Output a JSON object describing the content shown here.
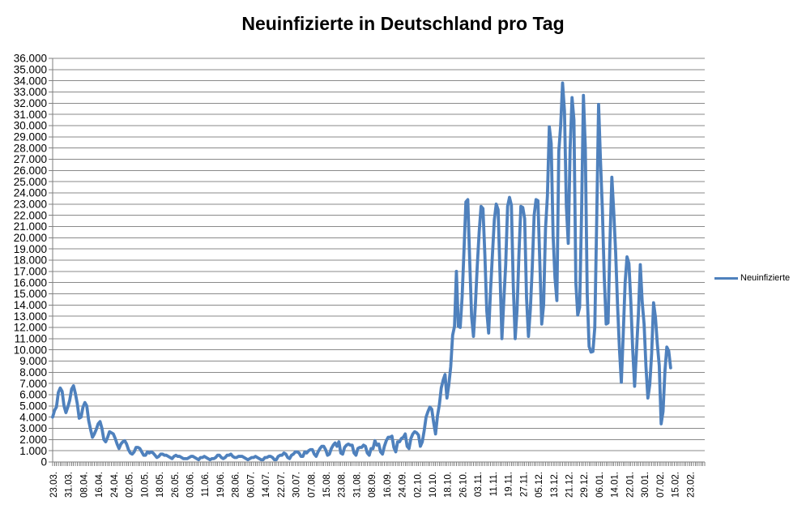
{
  "chart_data": {
    "type": "line",
    "title": "Neuinfizierte in Deutschland pro Tag",
    "grid": true,
    "legend": {
      "position": "right",
      "entries": [
        "Neuinfizierte"
      ]
    },
    "y_axis": {
      "min": 0,
      "max": 36000,
      "step": 1000,
      "tick_labels": [
        "36.000",
        "35.000",
        "34.000",
        "33.000",
        "32.000",
        "31.000",
        "30.000",
        "29.000",
        "28.000",
        "27.000",
        "26.000",
        "25.000",
        "24.000",
        "23.000",
        "22.000",
        "21.000",
        "20.000",
        "19.000",
        "18.000",
        "17.000",
        "16.000",
        "15.000",
        "14.000",
        "13.000",
        "12.000",
        "11.000",
        "10.000",
        "9.000",
        "8.000",
        "7.000",
        "6.000",
        "5.000",
        "4.000",
        "3.000",
        "2.000",
        "1.000",
        "0"
      ]
    },
    "x_axis": {
      "tick_labels": [
        "23.03.",
        "31.03.",
        "08.04.",
        "16.04.",
        "24.04.",
        "02.05.",
        "10.05.",
        "18.05.",
        "26.05.",
        "03.06.",
        "11.06.",
        "19.06.",
        "28.06.",
        "06.07.",
        "14.07.",
        "22.07.",
        "30.07.",
        "07.08.",
        "15.08.",
        "23.08.",
        "31.08.",
        "08.09.",
        "16.09.",
        "24.09.",
        "02.10.",
        "10.10.",
        "18.10.",
        "26.10.",
        "03.11.",
        "11.11.",
        "19.11.",
        "27.11.",
        "05.12.",
        "13.12.",
        "21.12.",
        "29.12.",
        "06.01.",
        "14.01.",
        "22.01.",
        "30.01.",
        "07.02.",
        "15.02.",
        "23.02."
      ],
      "label_interval": 8,
      "total_slots": 345,
      "labels_rotated": true
    },
    "series": [
      {
        "name": "Neuinfizierte",
        "color": "#4F81BD",
        "values": [
          4000,
          4600,
          4900,
          6200,
          6600,
          6300,
          5000,
          4400,
          4900,
          5500,
          6500,
          6800,
          6100,
          5200,
          3900,
          4000,
          4900,
          5300,
          5000,
          3700,
          2900,
          2200,
          2500,
          2900,
          3400,
          3600,
          3000,
          2000,
          1800,
          2200,
          2700,
          2600,
          2500,
          2100,
          1600,
          1200,
          1600,
          1800,
          1900,
          1600,
          1100,
          800,
          700,
          900,
          1300,
          1300,
          1200,
          900,
          600,
          600,
          900,
          800,
          900,
          800,
          600,
          400,
          500,
          700,
          700,
          600,
          600,
          500,
          400,
          300,
          500,
          600,
          500,
          500,
          400,
          300,
          300,
          300,
          400,
          500,
          500,
          400,
          300,
          200,
          400,
          400,
          500,
          400,
          300,
          200,
          300,
          300,
          400,
          600,
          600,
          400,
          300,
          400,
          600,
          600,
          700,
          500,
          400,
          400,
          500,
          500,
          500,
          400,
          300,
          200,
          300,
          400,
          400,
          500,
          400,
          300,
          200,
          200,
          400,
          400,
          500,
          500,
          400,
          200,
          200,
          500,
          600,
          600,
          800,
          700,
          400,
          300,
          600,
          700,
          900,
          900,
          800,
          500,
          500,
          900,
          800,
          1000,
          1100,
          1100,
          700,
          500,
          900,
          1200,
          1400,
          1400,
          1100,
          600,
          700,
          1200,
          1500,
          1700,
          1400,
          1800,
          800,
          700,
          1300,
          1500,
          1600,
          1500,
          1500,
          800,
          600,
          1200,
          1300,
          1300,
          1500,
          1400,
          800,
          600,
          1200,
          1200,
          1900,
          1500,
          1600,
          900,
          700,
          1400,
          1900,
          2200,
          2200,
          2300,
          1300,
          900,
          1800,
          1800,
          2100,
          2200,
          2500,
          1400,
          1200,
          2100,
          2500,
          2700,
          2600,
          2400,
          1400,
          1800,
          2800,
          4000,
          4500,
          4900,
          4700,
          3500,
          2500,
          4100,
          5100,
          6600,
          7300,
          7800,
          5700,
          6900,
          8500,
          11300,
          12100,
          17000,
          12100,
          12000,
          14700,
          18900,
          23200,
          23400,
          18000,
          13000,
          11200,
          14000,
          17500,
          20500,
          22800,
          22600,
          18500,
          13500,
          11500,
          15300,
          18500,
          21600,
          23000,
          22500,
          16700,
          11000,
          14400,
          17600,
          22800,
          23600,
          22900,
          15700,
          11000,
          13600,
          18600,
          22800,
          22700,
          21700,
          14600,
          11200,
          13600,
          17300,
          22000,
          23400,
          23300,
          17800,
          12300,
          14000,
          20800,
          23700,
          29900,
          28400,
          20200,
          16400,
          14400,
          27700,
          30000,
          33800,
          31300,
          22800,
          19500,
          28000,
          32500,
          30500,
          16000,
          13100,
          13800,
          22000,
          32700,
          28000,
          15000,
          10300,
          9800,
          9850,
          12000,
          21500,
          31900,
          26900,
          22500,
          16400,
          12300,
          12400,
          19600,
          25400,
          22300,
          18700,
          14000,
          10100,
          7100,
          11400,
          16000,
          18300,
          17700,
          14300,
          10000,
          6750,
          9900,
          13200,
          17600,
          14300,
          12300,
          8500,
          5700,
          6900,
          9700,
          14200,
          12900,
          10500,
          8600,
          3400,
          4500,
          8100,
          10250,
          9900,
          8400
        ]
      }
    ]
  },
  "colors": {
    "background": "#FFFFFF",
    "line": "#4F81BD",
    "gridline": "#8A8A8A",
    "axis": "#7F7F7F",
    "text": "#000000"
  }
}
